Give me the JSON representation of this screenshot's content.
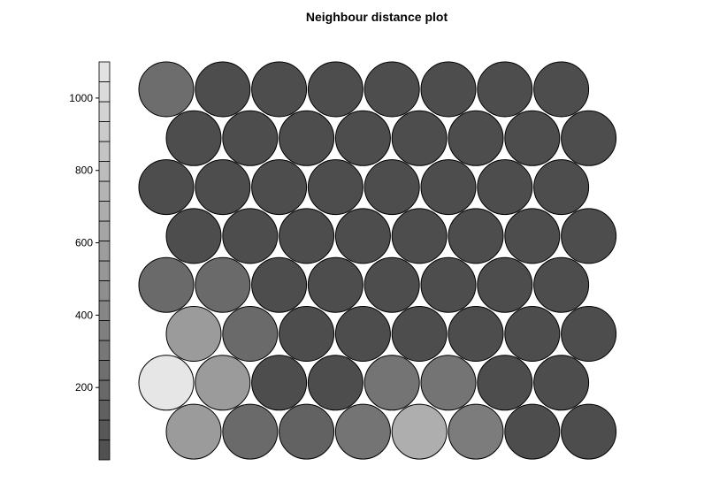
{
  "chart_data": {
    "type": "heatmap",
    "title": "Neighbour distance plot",
    "grid_shape": "hexagonal",
    "rows": 8,
    "cols": 8,
    "row_order": "top-to-bottom",
    "odd_rows_shifted": "right",
    "colorbar": {
      "ticks": [
        200,
        400,
        600,
        800,
        1000
      ],
      "range": [
        0,
        1100
      ],
      "steps": 20,
      "color_low": "#4d4d4d",
      "color_high": "#e6e6e6"
    },
    "values": [
      [
        230,
        0,
        0,
        0,
        0,
        0,
        0,
        0
      ],
      [
        0,
        0,
        0,
        0,
        0,
        0,
        0,
        0
      ],
      [
        0,
        0,
        0,
        0,
        0,
        0,
        0,
        0
      ],
      [
        0,
        0,
        0,
        0,
        0,
        0,
        0,
        0
      ],
      [
        210,
        210,
        0,
        0,
        0,
        0,
        0,
        0
      ],
      [
        560,
        210,
        0,
        0,
        0,
        0,
        0,
        0
      ],
      [
        1100,
        560,
        0,
        0,
        280,
        280,
        0,
        0
      ],
      [
        560,
        210,
        150,
        280,
        700,
        340,
        0,
        0
      ]
    ]
  }
}
